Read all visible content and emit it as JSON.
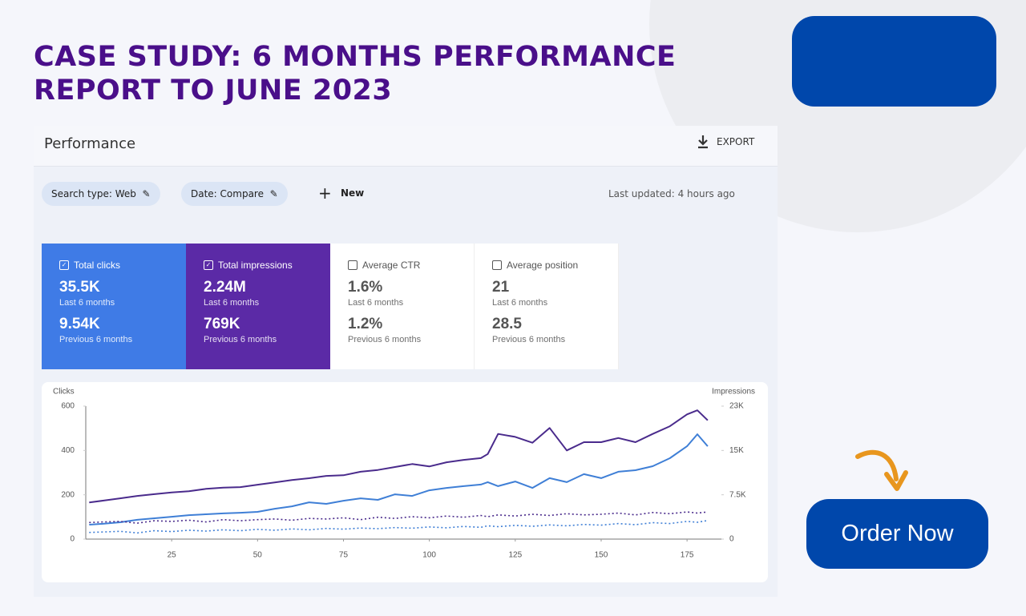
{
  "header": {
    "title": [
      "CASE STUDY: 6 MONTHS PERFORMANCE",
      "REPORT TO JUNE 2023"
    ]
  },
  "panel": {
    "title": "Performance",
    "export": "EXPORT",
    "filters": [
      "Search type: Web",
      "Date: Compare"
    ],
    "new": "New",
    "last_updated": "Last updated: 4 hours ago"
  },
  "metrics": [
    {
      "label": "Total clicks",
      "current": "35.5K",
      "current_period": "Last 6 months",
      "previous": "9.54K",
      "previous_period": "Previous 6 months",
      "checked": true,
      "color": "#3f7be6"
    },
    {
      "label": "Total impressions",
      "current": "2.24M",
      "current_period": "Last 6 months",
      "previous": "769K",
      "previous_period": "Previous 6 months",
      "checked": true,
      "color": "#5b2aa6"
    },
    {
      "label": "Average CTR",
      "current": "1.6%",
      "current_period": "Last 6 months",
      "previous": "1.2%",
      "previous_period": "Previous 6 months",
      "checked": false,
      "color": "#ffffff"
    },
    {
      "label": "Average position",
      "current": "21",
      "current_period": "Last 6 months",
      "previous": "28.5",
      "previous_period": "Previous 6 months",
      "checked": false,
      "color": "#ffffff"
    }
  ],
  "cta": "Order Now",
  "chart_data": {
    "type": "line",
    "ylabel": "Clicks",
    "y2label": "Impressions",
    "x": [
      1,
      5,
      10,
      15,
      20,
      25,
      30,
      35,
      40,
      45,
      50,
      55,
      60,
      65,
      70,
      75,
      80,
      85,
      90,
      95,
      100,
      105,
      110,
      115,
      117,
      120,
      125,
      130,
      135,
      140,
      145,
      150,
      155,
      160,
      165,
      170,
      175,
      178,
      181
    ],
    "xlim": [
      0,
      185
    ],
    "xticks": [
      25,
      50,
      75,
      100,
      125,
      150,
      175
    ],
    "ylim": [
      0,
      600
    ],
    "yticks": [
      0,
      200,
      400,
      600
    ],
    "y2lim": [
      0,
      22500
    ],
    "y2ticks": [
      0,
      {
        "value": 7500,
        "label": "7.5K"
      },
      {
        "value": 15000,
        "label": "15K"
      },
      {
        "value": 22500,
        "label": "23K"
      }
    ],
    "grid": false,
    "series": [
      {
        "color": "#4a2b8c",
        "axis": "y2",
        "dashed": false,
        "values": [
          6200,
          6500,
          6900,
          7300,
          7600,
          7900,
          8100,
          8500,
          8700,
          8800,
          9200,
          9600,
          10000,
          10300,
          10700,
          10800,
          11400,
          11700,
          12200,
          12700,
          12300,
          13000,
          13400,
          13700,
          14400,
          17800,
          17300,
          16300,
          18800,
          15000,
          16400,
          16400,
          17100,
          16400,
          17800,
          19100,
          21100,
          21800,
          20100
        ]
      },
      {
        "color": "#3f7fd6",
        "axis": "y",
        "dashed": false,
        "values": [
          65,
          69,
          76,
          87,
          94,
          101,
          108,
          112,
          116,
          119,
          123,
          137,
          148,
          166,
          159,
          173,
          184,
          177,
          202,
          195,
          220,
          231,
          239,
          246,
          257,
          239,
          260,
          231,
          275,
          257,
          293,
          275,
          304,
          311,
          329,
          365,
          419,
          473,
          419
        ]
      },
      {
        "color": "#4a2b8c",
        "axis": "y2",
        "dashed": true,
        "values": [
          2800,
          2900,
          3000,
          2700,
          3100,
          3000,
          3200,
          2900,
          3300,
          3100,
          3300,
          3400,
          3200,
          3500,
          3400,
          3600,
          3300,
          3700,
          3500,
          3800,
          3600,
          3900,
          3700,
          4000,
          3800,
          4100,
          3900,
          4200,
          4000,
          4300,
          4100,
          4200,
          4400,
          4100,
          4500,
          4300,
          4600,
          4400,
          4600
        ]
      },
      {
        "color": "#3f7fd6",
        "axis": "y",
        "dashed": true,
        "values": [
          30,
          32,
          35,
          28,
          38,
          34,
          40,
          36,
          42,
          38,
          44,
          40,
          46,
          42,
          48,
          45,
          50,
          47,
          52,
          49,
          55,
          51,
          57,
          53,
          60,
          56,
          62,
          58,
          64,
          60,
          66,
          63,
          70,
          65,
          74,
          70,
          80,
          76,
          84
        ]
      }
    ]
  }
}
